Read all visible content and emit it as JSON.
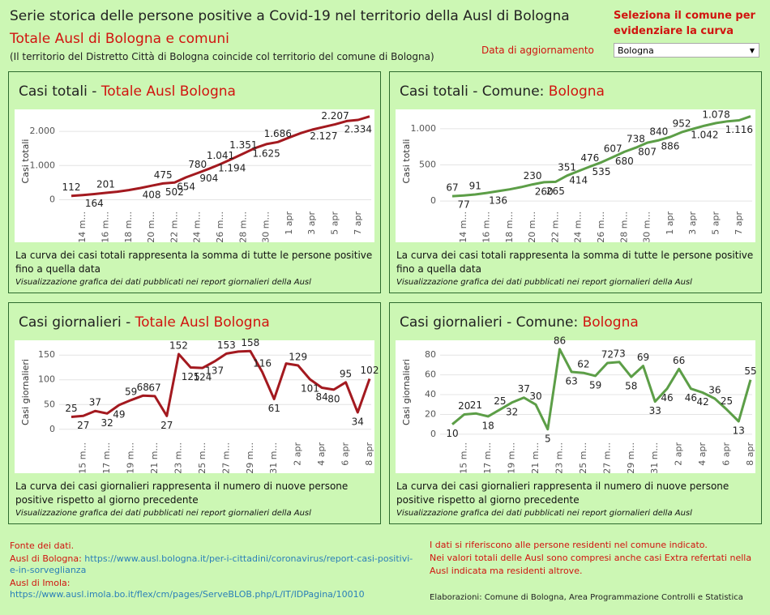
{
  "header": {
    "title": "Serie storica delle persone positive a Covid-19 nel territorio della Ausl di Bologna",
    "subtitle": "Totale Ausl di Bologna e comuni",
    "note": "(Il territorio del Distretto Città di Bologna coincide col territorio del comune di Bologna)",
    "update_label": "Data di aggiornamento",
    "select_label": "Seleziona il comune per evidenziare la curva",
    "select_value": "Bologna"
  },
  "chart_data": [
    {
      "type": "line",
      "title": "Casi totali - ",
      "highlight": "Totale Ausl Bologna",
      "y_label": "Casi totali",
      "color": "#a3191f",
      "grid": true,
      "categories": [
        null,
        "14 m...",
        null,
        "16 m...",
        null,
        "18 m...",
        null,
        "20 m...",
        null,
        "22 m...",
        null,
        "24 m...",
        null,
        "26 m...",
        null,
        "28 m...",
        null,
        "30 m...",
        null,
        "1 apr",
        null,
        "3 apr",
        null,
        "5 apr",
        null,
        "7 apr",
        null
      ],
      "values": [
        112,
        137,
        164,
        201,
        233,
        282,
        341,
        408,
        475,
        502,
        654,
        780,
        904,
        1041,
        1194,
        1351,
        1509,
        1625,
        1686,
        1819,
        1948,
        2049,
        2127,
        2207,
        2302,
        2334,
        2436
      ],
      "value_labels": [
        "112",
        null,
        "164",
        "201",
        null,
        null,
        null,
        "408",
        "475",
        "502",
        "654",
        "780",
        "904",
        "1.041",
        "1.194",
        "1.351",
        null,
        "1.625",
        "1.686",
        null,
        null,
        null,
        "2.127",
        "2.207",
        null,
        "2.334",
        null
      ],
      "ylim": [
        -250,
        2500
      ],
      "yticks": [
        0,
        {
          "value": 1000,
          "label": "1.000"
        },
        {
          "value": 2000,
          "label": "2.000"
        }
      ],
      "description": "La curva dei casi totali rappresenta la somma di tutte le persone positive fino a quella data",
      "source_note": "Visualizzazione grafica dei dati pubblicati nei report giornalieri della Ausl"
    },
    {
      "type": "line",
      "title": "Casi totali - Comune: ",
      "highlight": "Bologna",
      "y_label": "Casi totali",
      "color": "#5c9e47",
      "grid": true,
      "categories": [
        null,
        "14 m...",
        null,
        "16 m...",
        null,
        "18 m...",
        null,
        "20 m...",
        null,
        "22 m...",
        null,
        "24 m...",
        null,
        "26 m...",
        null,
        "28 m...",
        null,
        "30 m...",
        null,
        "1 apr",
        null,
        "3 apr",
        null,
        "5 apr",
        null,
        "7 apr",
        null
      ],
      "values": [
        67,
        77,
        91,
        112,
        136,
        161,
        193,
        230,
        260,
        265,
        351,
        414,
        476,
        535,
        607,
        680,
        738,
        807,
        840,
        886,
        952,
        998,
        1042,
        1078,
        1103,
        1116,
        1171
      ],
      "value_labels": [
        "67",
        "77",
        "91",
        null,
        "136",
        null,
        null,
        "230",
        "260",
        "265",
        "351",
        "414",
        "476",
        "535",
        "607",
        "680",
        "738",
        "807",
        "840",
        "886",
        "952",
        null,
        "1.042",
        "1.078",
        null,
        "1.116",
        null
      ],
      "ylim": [
        -100,
        1200
      ],
      "yticks": [
        0,
        500,
        {
          "value": 1000,
          "label": "1.000"
        }
      ],
      "description": "La curva dei casi totali rappresenta la somma di tutte le persone positive fino a quella data",
      "source_note": "Visualizzazione grafica dei dati pubblicati nei report giornalieri della Ausl"
    },
    {
      "type": "line",
      "title": "Casi giornalieri - ",
      "highlight": "Totale Ausl Bologna",
      "y_label": "Casi giornalieri",
      "color": "#a3191f",
      "grid": true,
      "categories": [
        null,
        "15 m...",
        null,
        "17 m...",
        null,
        "19 m...",
        null,
        "21 m...",
        null,
        "23 m...",
        null,
        "25 m...",
        null,
        "27 m...",
        null,
        "29 m...",
        null,
        "31 m...",
        null,
        "2 apr",
        null,
        "4 apr",
        null,
        "6 apr",
        null,
        "8 apr"
      ],
      "values": [
        25,
        27,
        37,
        32,
        49,
        59,
        68,
        67,
        27,
        152,
        125,
        124,
        137,
        153,
        157,
        158,
        116,
        61,
        133,
        129,
        101,
        84,
        80,
        95,
        34,
        102
      ],
      "value_labels": [
        "25",
        "27",
        "37",
        "32",
        "49",
        "59",
        "68",
        "67",
        "27",
        "152",
        "125",
        "124",
        "137",
        "153",
        null,
        "158",
        "116",
        "61",
        null,
        "129",
        "101",
        "84",
        "80",
        "95",
        "34",
        "102"
      ],
      "ylim": [
        -20,
        170
      ],
      "yticks": [
        0,
        50,
        100,
        150
      ],
      "description": "La curva dei casi giornalieri rappresenta il numero di nuove persone positive rispetto al giorno precedente",
      "source_note": "Visualizzazione grafica dei dati pubblicati nei report giornalieri della Ausl"
    },
    {
      "type": "line",
      "title": "Casi giornalieri - Comune: ",
      "highlight": "Bologna",
      "y_label": "Casi giornalieri",
      "color": "#5c9e47",
      "grid": true,
      "categories": [
        null,
        "15 m...",
        null,
        "17 m...",
        null,
        "19 m...",
        null,
        "21 m...",
        null,
        "23 m...",
        null,
        "25 m...",
        null,
        "27 m...",
        null,
        "29 m...",
        null,
        "31 m...",
        null,
        "2 apr",
        null,
        "4 apr",
        null,
        "6 apr",
        null,
        "8 apr"
      ],
      "values": [
        10,
        20,
        21,
        18,
        25,
        32,
        37,
        30,
        5,
        86,
        63,
        62,
        59,
        72,
        73,
        58,
        69,
        33,
        46,
        66,
        46,
        42,
        36,
        25,
        13,
        55
      ],
      "value_labels": [
        "10",
        "20",
        "21",
        "18",
        "25",
        "32",
        "37",
        "30",
        "5",
        "86",
        "63",
        "62",
        "59",
        "72",
        "73",
        "58",
        "69",
        "33",
        "46",
        "66",
        "46",
        "42",
        "36",
        "25",
        "13",
        "55"
      ],
      "ylim": [
        -5,
        90
      ],
      "yticks": [
        0,
        20,
        40,
        60,
        80
      ],
      "description": "La curva dei casi giornalieri rappresenta il numero di nuove persone positive rispetto al giorno precedente",
      "source_note": "Visualizzazione grafica dei dati pubblicati nei report giornalieri della Ausl"
    }
  ],
  "footer": {
    "source_title": "Fonte dei dati.",
    "bologna_label": "Ausl di Bologna:",
    "bologna_url": "https://www.ausl.bologna.it/per-i-cittadini/coronavirus/report-casi-positivi-e-in-sorveglianza",
    "imola_label": "Ausl di Imola:",
    "imola_url": "https://www.ausl.imola.bo.it/flex/cm/pages/ServeBLOB.php/L/IT/IDPagina/10010",
    "residents_note": "I dati si riferiscono alle persone residenti nel comune indicato.",
    "extra_note": "Nei valori totali delle Ausl sono compresi anche casi Extra refertati nella Ausl indicata ma residenti altrove.",
    "credits": "Elaborazioni: Comune di Bologna, Area Programmazione Controlli e Statistica"
  }
}
